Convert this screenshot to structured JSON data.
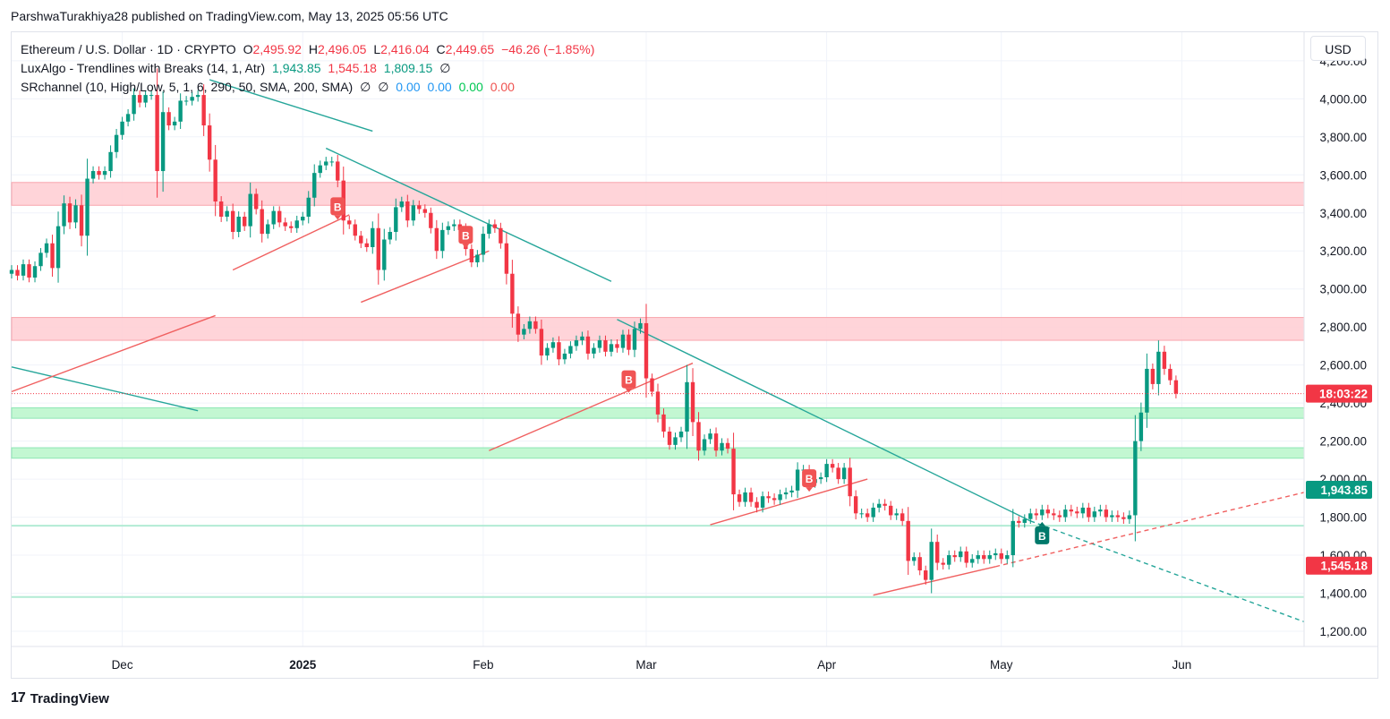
{
  "header": {
    "publish_line": "ParshwaTurakhiya28 published on TradingView.com, May 13, 2025 05:56 UTC"
  },
  "legend": {
    "symbol_line": {
      "name": "Ethereum / U.S. Dollar · 1D · CRYPTO",
      "o_label": "O",
      "o": "2,495.92",
      "h_label": "H",
      "h": "2,496.05",
      "l_label": "L",
      "l": "2,416.04",
      "c_label": "C",
      "c": "2,449.65",
      "change": "−46.26 (−1.85%)"
    },
    "luxalgo": {
      "name": "LuxAlgo - Trendlines with Breaks (14, 1, Atr)",
      "v1": "1,943.85",
      "v2": "1,545.18",
      "v3": "1,809.15",
      "v4": "∅"
    },
    "srchannel": {
      "name": "SRchannel (10, High/Low, 5, 1, 6, 290, 50, SMA, 200, SMA)",
      "v1": "∅",
      "v2": "∅",
      "v3": "0.00",
      "v4": "0.00",
      "v5": "0.00",
      "v6": "0.00"
    }
  },
  "currency_button": "USD",
  "footer": {
    "logo_text": "TradingView",
    "logo_mark": "17"
  },
  "colors": {
    "up": "#089981",
    "down": "#f23645",
    "trend_down": "#26a69a",
    "trend_up": "#f06060",
    "resistance_zone": "#ffcdd2",
    "support_zone": "#b9f6ca",
    "support_line": "#b2ebd4"
  },
  "chart_data": {
    "type": "candlestick",
    "instrument": "Ethereum / U.S. Dollar",
    "timeframe": "1D",
    "y_unit": "USD",
    "ylim": [
      1120,
      4350
    ],
    "date_range": [
      "2024-11-12",
      "2025-06-22"
    ],
    "y_ticks": [
      "1,200.00",
      "1,400.00",
      "1,600.00",
      "1,800.00",
      "2,000.00",
      "2,200.00",
      "2,400.00",
      "2,600.00",
      "2,800.00",
      "3,000.00",
      "3,200.00",
      "3,400.00",
      "3,600.00",
      "3,800.00",
      "4,000.00",
      "4,200.00"
    ],
    "y_tick_values": [
      1200,
      1400,
      1600,
      1800,
      2000,
      2200,
      2400,
      2600,
      2800,
      3000,
      3200,
      3400,
      3600,
      3800,
      4000,
      4200
    ],
    "x_ticks": [
      {
        "label": "Dec",
        "date": "2024-12-01",
        "bold": false
      },
      {
        "label": "2025",
        "date": "2025-01-01",
        "bold": true
      },
      {
        "label": "Feb",
        "date": "2025-02-01",
        "bold": false
      },
      {
        "label": "Mar",
        "date": "2025-03-01",
        "bold": false
      },
      {
        "label": "Apr",
        "date": "2025-04-01",
        "bold": false
      },
      {
        "label": "May",
        "date": "2025-05-01",
        "bold": false
      },
      {
        "label": "Jun",
        "date": "2025-06-01",
        "bold": false
      }
    ],
    "candles": {
      "start_date": "2024-11-12",
      "closes": [
        3100,
        3070,
        3130,
        3060,
        3120,
        3190,
        3240,
        3110,
        3330,
        3450,
        3350,
        3440,
        3280,
        3580,
        3620,
        3600,
        3620,
        3720,
        3810,
        3880,
        3920,
        4020,
        3980,
        4020,
        4020,
        3620,
        3930,
        3860,
        3880,
        3990,
        3990,
        4010,
        4020,
        3860,
        3680,
        3460,
        3380,
        3410,
        3300,
        3380,
        3330,
        3500,
        3420,
        3290,
        3340,
        3410,
        3350,
        3330,
        3320,
        3360,
        3380,
        3480,
        3610,
        3650,
        3670,
        3670,
        3570,
        3360,
        3340,
        3280,
        3240,
        3220,
        3320,
        3100,
        3260,
        3300,
        3430,
        3460,
        3360,
        3440,
        3420,
        3400,
        3320,
        3200,
        3310,
        3330,
        3340,
        3310,
        3210,
        3140,
        3180,
        3290,
        3340,
        3320,
        3240,
        3080,
        2870,
        2760,
        2790,
        2830,
        2790,
        2650,
        2690,
        2720,
        2630,
        2660,
        2700,
        2730,
        2750,
        2660,
        2690,
        2730,
        2670,
        2710,
        2690,
        2760,
        2680,
        2790,
        2820,
        2530,
        2460,
        2340,
        2250,
        2180,
        2220,
        2250,
        2510,
        2300,
        2150,
        2210,
        2240,
        2150,
        2190,
        2160,
        1920,
        1880,
        1930,
        1880,
        1850,
        1910,
        1900,
        1890,
        1920,
        1930,
        1940,
        2050,
        2050,
        1980,
        2000,
        2010,
        2080,
        2060,
        2000,
        2060,
        1910,
        1820,
        1820,
        1800,
        1850,
        1870,
        1860,
        1810,
        1820,
        1780,
        1570,
        1590,
        1520,
        1470,
        1670,
        1560,
        1550,
        1600,
        1590,
        1620,
        1560,
        1580,
        1600,
        1580,
        1600,
        1610,
        1580,
        1600,
        1780,
        1770,
        1790,
        1820,
        1810,
        1840,
        1820,
        1810,
        1800,
        1840,
        1830,
        1820,
        1850,
        1800,
        1830,
        1840,
        1800,
        1810,
        1800,
        1790,
        1810,
        2200,
        2350,
        2580,
        2500,
        2670,
        2580,
        2520,
        2449.65
      ]
    },
    "current_price": 2449.65,
    "current_price_tag": "18:03:22",
    "price_tags": [
      {
        "value": 1943.85,
        "label": "1,943.85",
        "color": "#089981"
      },
      {
        "value": 1545.18,
        "label": "1,545.18",
        "color": "#f23645"
      }
    ],
    "resistance_zones": [
      [
        3440,
        3560
      ],
      [
        2730,
        2850
      ]
    ],
    "support_zones": [
      [
        2320,
        2375
      ],
      [
        2110,
        2165
      ]
    ],
    "support_lines": [
      1755,
      1380
    ],
    "trendlines_down": [
      {
        "from": [
          "2024-12-16",
          4100
        ],
        "to": [
          "2025-01-13",
          3830
        ],
        "dashed": false
      },
      {
        "from": [
          "2025-01-05",
          3740
        ],
        "to": [
          "2025-02-23",
          3040
        ],
        "dashed": false
      },
      {
        "from": [
          "2024-11-12",
          2590
        ],
        "to": [
          "2024-12-14",
          2360
        ],
        "dashed": false
      },
      {
        "from": [
          "2025-02-24",
          2840
        ],
        "to": [
          "2025-05-06",
          1780
        ],
        "dashed": false
      },
      {
        "from": [
          "2025-05-06",
          1780
        ],
        "to": [
          "2025-06-22",
          1250
        ],
        "dashed": true
      }
    ],
    "trendlines_up": [
      {
        "from": [
          "2024-11-12",
          2460
        ],
        "to": [
          "2024-12-17",
          2860
        ],
        "dashed": false
      },
      {
        "from": [
          "2024-12-20",
          3100
        ],
        "to": [
          "2025-01-09",
          3390
        ],
        "dashed": false
      },
      {
        "from": [
          "2025-01-11",
          2930
        ],
        "to": [
          "2025-02-02",
          3200
        ],
        "dashed": false
      },
      {
        "from": [
          "2025-02-02",
          2150
        ],
        "to": [
          "2025-03-09",
          2610
        ],
        "dashed": false
      },
      {
        "from": [
          "2025-03-12",
          1760
        ],
        "to": [
          "2025-04-08",
          2000
        ],
        "dashed": false
      },
      {
        "from": [
          "2025-04-09",
          1390
        ],
        "to": [
          "2025-04-30",
          1540
        ],
        "dashed": false
      },
      {
        "from": [
          "2025-04-30",
          1540
        ],
        "to": [
          "2025-06-22",
          1930
        ],
        "dashed": true
      }
    ],
    "breakout_markers": [
      {
        "label": "B",
        "date": "2025-01-07",
        "price": 3430,
        "type": "down"
      },
      {
        "label": "B",
        "date": "2025-01-29",
        "price": 3280,
        "type": "down"
      },
      {
        "label": "B",
        "date": "2025-02-26",
        "price": 2520,
        "type": "down"
      },
      {
        "label": "B",
        "date": "2025-03-29",
        "price": 2000,
        "type": "down"
      },
      {
        "label": "B",
        "date": "2025-05-08",
        "price": 1700,
        "type": "up"
      }
    ]
  }
}
